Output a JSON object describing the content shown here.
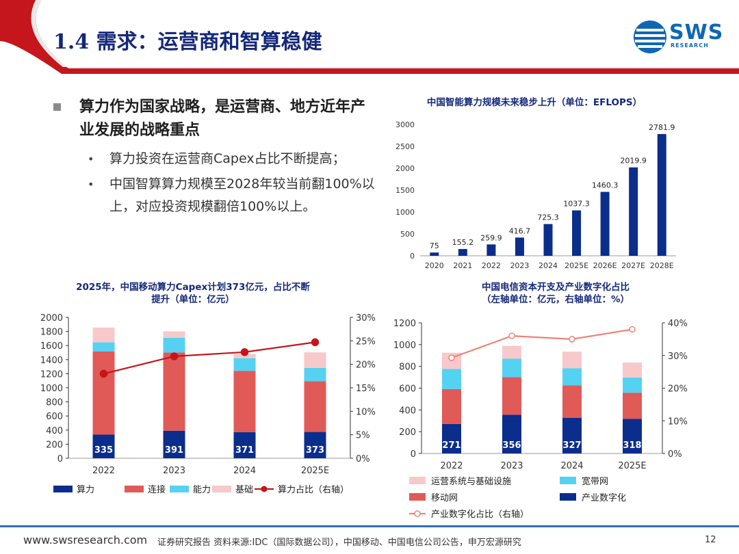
{
  "slide": {
    "title": "1.4 需求：运营商和智算稳健",
    "logo_main": "SWS",
    "logo_sub": "RESEARCH",
    "main_bullet": "算力作为国家战略，是运营商、地方近年产业发展的战略重点",
    "sub_bullets": [
      "算力投资在运营商Capex占比不断提高；",
      "中国智算算力规模至2028年较当前翻100%以上，对应投资规模翻倍100%以上。"
    ],
    "bullet_dot": "•",
    "footer_url": "www.swsresearch.com",
    "footer_source": "证券研究报告    资料来源:IDC（国际数据公司），中国移动、中国电信公司公告，申万宏源研究",
    "page_number": "12"
  },
  "colors": {
    "title": "#14287a",
    "accent_red": "#c4161c",
    "dark_blue": "#0b2d8c",
    "red_bar": "#e05a57",
    "cyan_bar": "#55d2f2",
    "pink_bar": "#f7c9ca",
    "line_red": "#c5141a",
    "line_pink": "#ee8377"
  },
  "chart_data": [
    {
      "id": "idc",
      "type": "bar",
      "title": "中国智能算力规模未来稳步上升（单位：EFLOPS）",
      "categories": [
        "2020",
        "2021",
        "2022",
        "2023",
        "2024",
        "2025E",
        "2026E",
        "2027E",
        "2028E"
      ],
      "values": [
        75,
        155.2,
        259.9,
        416.7,
        725.3,
        1037.3,
        1460.3,
        2019.9,
        2781.9
      ],
      "value_labels": [
        "75",
        "155.2",
        "259.9",
        "416.7",
        "725.3",
        "1037.3",
        "1460.3",
        "2019.9",
        "2781.9"
      ],
      "ylim": [
        0,
        3000
      ],
      "yticks": [
        0,
        500,
        1000,
        1500,
        2000,
        2500,
        3000
      ]
    },
    {
      "id": "cmcc",
      "type": "bar",
      "stacked": true,
      "title": [
        "2025年，中国移动算力Capex计划373亿元，占比不断",
        "提升（单位：亿元）"
      ],
      "categories": [
        "2022",
        "2023",
        "2024",
        "2025E"
      ],
      "series": [
        {
          "name": "算力",
          "values": [
            335,
            391,
            371,
            373
          ]
        },
        {
          "name": "连接",
          "values": [
            1180,
            1110,
            870,
            720
          ]
        },
        {
          "name": "能力",
          "values": [
            130,
            210,
            180,
            190
          ]
        },
        {
          "name": "基础",
          "values": [
            210,
            90,
            60,
            220
          ]
        }
      ],
      "line": {
        "name": "算力占比（右轴）",
        "values": [
          18.0,
          21.7,
          22.6,
          24.7
        ]
      },
      "bar_labels": [
        "335",
        "391",
        "371",
        "373"
      ],
      "ylim": [
        0,
        2000
      ],
      "yticks": [
        0,
        200,
        400,
        600,
        800,
        1000,
        1200,
        1400,
        1600,
        1800,
        2000
      ],
      "y2lim": [
        0,
        30
      ],
      "y2ticks": [
        "0%",
        "5%",
        "10%",
        "15%",
        "20%",
        "25%",
        "30%"
      ],
      "legend": [
        "算力",
        "连接",
        "能力",
        "基础",
        "算力占比（右轴）"
      ]
    },
    {
      "id": "ct",
      "type": "bar",
      "stacked": true,
      "title": [
        "中国电信资本开支及产业数字化占比",
        "（左轴单位：亿元，右轴单位：%）"
      ],
      "categories": [
        "2022",
        "2023",
        "2024",
        "2025E"
      ],
      "series": [
        {
          "name": "产业数字化",
          "values": [
            271,
            356,
            327,
            318
          ]
        },
        {
          "name": "移动网",
          "values": [
            320,
            345,
            298,
            240
          ]
        },
        {
          "name": "宽带网",
          "values": [
            185,
            170,
            158,
            140
          ]
        },
        {
          "name": "运营系统与基础设施",
          "values": [
            149,
            117,
            152,
            137
          ]
        }
      ],
      "line": {
        "name": "产业数字化占比（右轴）",
        "values": [
          29.3,
          36.0,
          35.0,
          38.0
        ]
      },
      "bar_labels": [
        "271",
        "356",
        "327",
        "318"
      ],
      "ylim": [
        0,
        1200
      ],
      "yticks": [
        0,
        200,
        400,
        600,
        800,
        1000,
        1200
      ],
      "y2lim": [
        0,
        40
      ],
      "y2ticks": [
        "0%",
        "10%",
        "20%",
        "30%",
        "40%"
      ],
      "legend": [
        "运营系统与基础设施",
        "宽带网",
        "移动网",
        "产业数字化",
        "产业数字化占比（右轴）"
      ]
    }
  ]
}
